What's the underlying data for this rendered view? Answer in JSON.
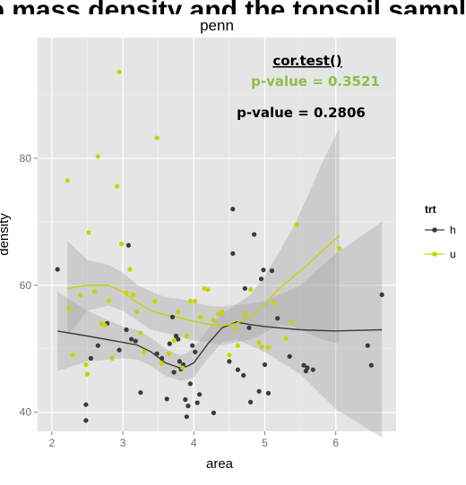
{
  "top_fragment": "Pb mass density and the topsoil samples",
  "chart_data": {
    "type": "scatter",
    "title": "penn",
    "xlabel": "area",
    "ylabel": "density",
    "xlim": [
      1.8,
      6.85
    ],
    "ylim": [
      37,
      99
    ],
    "x_ticks": [
      2,
      3,
      4,
      5,
      6
    ],
    "y_ticks": [
      40,
      60,
      80
    ],
    "grid": true,
    "legend": {
      "title": "trt",
      "placement": "right",
      "entries": [
        "h",
        "u"
      ]
    },
    "annotations": {
      "heading": "cor.test()",
      "pvalue_u": "p-value = 0.3521",
      "pvalue_h": "p-value = 0.2806"
    },
    "colors": {
      "h": "#3a3a3a",
      "u": "#c6d400",
      "pvalue_u": "#8ac049",
      "panel": "#e5e5e5",
      "ribbon": "#c8c8c8",
      "grid": "#ffffff"
    },
    "series": [
      {
        "name": "h",
        "points": [
          [
            2.08,
            62.5
          ],
          [
            2.48,
            41.2
          ],
          [
            2.48,
            38.7
          ],
          [
            2.55,
            48.5
          ],
          [
            2.65,
            50.5
          ],
          [
            2.78,
            54.0
          ],
          [
            2.95,
            49.8
          ],
          [
            3.05,
            53.0
          ],
          [
            3.08,
            66.3
          ],
          [
            3.12,
            51.5
          ],
          [
            3.18,
            51.2
          ],
          [
            3.25,
            43.1
          ],
          [
            3.48,
            49.2
          ],
          [
            3.55,
            48.5
          ],
          [
            3.62,
            42.1
          ],
          [
            3.66,
            50.8
          ],
          [
            3.7,
            55.0
          ],
          [
            3.72,
            46.3
          ],
          [
            3.75,
            52.0
          ],
          [
            3.78,
            51.5
          ],
          [
            3.8,
            48.0
          ],
          [
            3.82,
            46.8
          ],
          [
            3.85,
            47.5
          ],
          [
            3.88,
            42.0
          ],
          [
            3.9,
            39.3
          ],
          [
            3.92,
            41.0
          ],
          [
            3.95,
            44.5
          ],
          [
            3.98,
            50.5
          ],
          [
            4.02,
            49.5
          ],
          [
            4.05,
            41.5
          ],
          [
            4.08,
            42.8
          ],
          [
            4.28,
            39.9
          ],
          [
            4.5,
            48.0
          ],
          [
            4.55,
            72.0
          ],
          [
            4.55,
            65.0
          ],
          [
            4.62,
            46.7
          ],
          [
            4.7,
            45.8
          ],
          [
            4.72,
            59.5
          ],
          [
            4.78,
            53.3
          ],
          [
            4.8,
            41.6
          ],
          [
            4.85,
            68.0
          ],
          [
            4.92,
            43.3
          ],
          [
            4.95,
            61.0
          ],
          [
            4.98,
            62.4
          ],
          [
            5.0,
            47.5
          ],
          [
            5.05,
            43.0
          ],
          [
            5.1,
            62.3
          ],
          [
            5.18,
            54.8
          ],
          [
            5.35,
            48.8
          ],
          [
            5.55,
            47.4
          ],
          [
            5.58,
            46.5
          ],
          [
            5.6,
            47.0
          ],
          [
            5.68,
            46.7
          ],
          [
            6.45,
            50.5
          ],
          [
            6.5,
            47.4
          ],
          [
            6.65,
            58.5
          ]
        ]
      },
      {
        "name": "u",
        "points": [
          [
            2.22,
            76.5
          ],
          [
            2.24,
            56.3
          ],
          [
            2.3,
            49.0
          ],
          [
            2.4,
            58.5
          ],
          [
            2.48,
            47.5
          ],
          [
            2.5,
            46.0
          ],
          [
            2.52,
            68.3
          ],
          [
            2.6,
            59.0
          ],
          [
            2.65,
            80.3
          ],
          [
            2.7,
            53.9
          ],
          [
            2.75,
            53.7
          ],
          [
            2.8,
            57.6
          ],
          [
            2.85,
            48.5
          ],
          [
            2.92,
            75.6
          ],
          [
            2.95,
            93.6
          ],
          [
            2.98,
            66.5
          ],
          [
            3.05,
            58.8
          ],
          [
            3.1,
            62.5
          ],
          [
            3.15,
            58.5
          ],
          [
            3.2,
            55.8
          ],
          [
            3.25,
            52.5
          ],
          [
            3.3,
            49.5
          ],
          [
            3.45,
            57.5
          ],
          [
            3.48,
            83.2
          ],
          [
            3.55,
            47.7
          ],
          [
            3.65,
            49.2
          ],
          [
            3.72,
            51.3
          ],
          [
            3.78,
            55.8
          ],
          [
            3.84,
            47.0
          ],
          [
            3.9,
            52.0
          ],
          [
            3.95,
            57.5
          ],
          [
            4.02,
            57.5
          ],
          [
            4.1,
            55.0
          ],
          [
            4.15,
            59.5
          ],
          [
            4.2,
            59.3
          ],
          [
            4.28,
            54.5
          ],
          [
            4.35,
            55.5
          ],
          [
            4.4,
            55.8
          ],
          [
            4.5,
            49.0
          ],
          [
            4.58,
            53.2
          ],
          [
            4.62,
            50.5
          ],
          [
            4.72,
            55.4
          ],
          [
            4.8,
            59.3
          ],
          [
            4.92,
            51.0
          ],
          [
            4.96,
            50.3
          ],
          [
            5.05,
            50.2
          ],
          [
            5.12,
            57.2
          ],
          [
            5.3,
            51.6
          ],
          [
            5.38,
            54.3
          ],
          [
            5.45,
            69.5
          ],
          [
            6.05,
            65.8
          ]
        ]
      }
    ],
    "smooth": {
      "h": {
        "x": [
          2.08,
          2.5,
          3.0,
          3.2,
          3.4,
          3.6,
          3.8,
          3.9,
          4.0,
          4.2,
          4.4,
          4.6,
          4.8,
          5.0,
          5.5,
          6.0,
          6.65
        ],
        "y": [
          52.8,
          52.0,
          51.0,
          50.6,
          49.5,
          47.8,
          47.0,
          47.2,
          47.8,
          50.8,
          53.3,
          54.2,
          53.8,
          53.5,
          53.0,
          52.8,
          53.0
        ],
        "lo": [
          46.5,
          48.0,
          48.5,
          48.3,
          47.3,
          45.7,
          45.0,
          45.1,
          45.5,
          48.5,
          51.0,
          51.5,
          50.5,
          49.5,
          46.0,
          40.5,
          36.0
        ],
        "hi": [
          59.0,
          56.0,
          53.5,
          53.0,
          51.7,
          50.0,
          49.0,
          49.3,
          50.1,
          53.1,
          55.6,
          56.9,
          57.1,
          57.5,
          60.0,
          65.0,
          70.0
        ]
      },
      "u": {
        "x": [
          2.22,
          2.5,
          2.8,
          3.0,
          3.2,
          3.4,
          3.6,
          3.8,
          4.0,
          4.2,
          4.4,
          4.6,
          4.8,
          5.0,
          5.2,
          5.4,
          5.6,
          5.8,
          6.05
        ],
        "y": [
          59.5,
          60.0,
          60.0,
          59.0,
          57.3,
          56.0,
          55.3,
          54.9,
          54.3,
          53.9,
          53.6,
          54.0,
          55.0,
          57.0,
          59.5,
          61.3,
          63.2,
          65.3,
          67.8
        ],
        "lo": [
          52.0,
          56.0,
          56.8,
          56.0,
          54.5,
          53.0,
          52.5,
          51.9,
          51.3,
          51.0,
          50.6,
          51.0,
          51.5,
          52.5,
          53.8,
          53.5,
          52.5,
          51.5,
          50.8
        ],
        "hi": [
          67.0,
          64.0,
          63.2,
          62.0,
          60.1,
          59.0,
          58.1,
          57.9,
          57.3,
          56.8,
          56.6,
          57.0,
          58.5,
          61.5,
          65.2,
          69.1,
          73.9,
          79.1,
          84.8
        ]
      }
    }
  }
}
